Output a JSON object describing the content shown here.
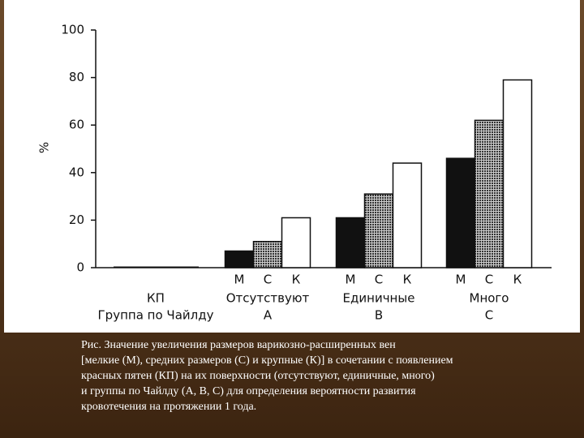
{
  "chart_data": {
    "type": "bar",
    "ylabel": "%",
    "ylim": [
      0,
      100
    ],
    "yticks": [
      0,
      20,
      40,
      60,
      80,
      100
    ],
    "categories": [
      "КП",
      "Отсутствуют",
      "Единичные",
      "Много"
    ],
    "group_letters": [
      null,
      "А",
      "В",
      "С"
    ],
    "xlabel": "Группа по Чайлду",
    "kp_bar": 0.5,
    "series": [
      {
        "name": "М",
        "color": "#111111",
        "values": [
          null,
          7,
          21,
          46
        ]
      },
      {
        "name": "С",
        "color": "#6e6e6e",
        "pattern": "dots",
        "values": [
          null,
          11,
          31,
          62
        ]
      },
      {
        "name": "К",
        "color": "#ffffff",
        "values": [
          null,
          21,
          44,
          79
        ]
      }
    ]
  },
  "caption": [
    "Рис. Значение увеличения размеров варикозно-расширенных вен",
    "[мелкие (М), средних размеров (С) и крупные (К)] в сочетании с появлением",
    "красных пятен (КП) на их поверхности (отсутствуют, единичные, много)",
    "и группы по Чайлду (А, В, С) для определения вероятности развития",
    "кровотечения на протяжении 1 года."
  ]
}
